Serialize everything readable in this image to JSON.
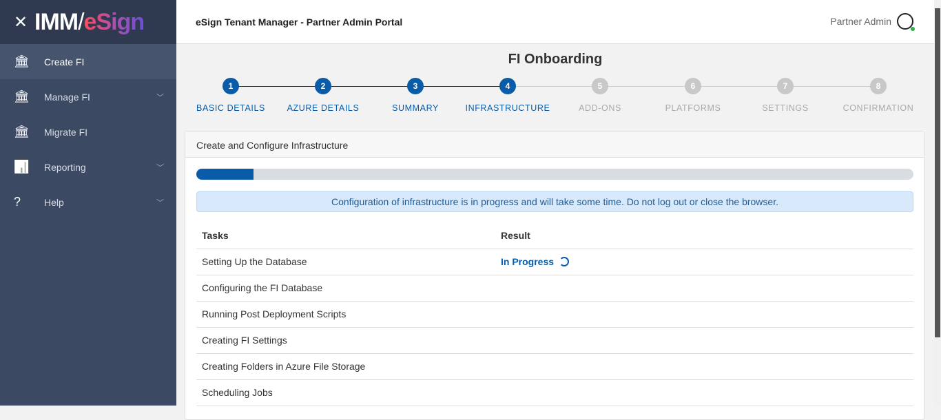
{
  "sidebar": {
    "brand": {
      "imm": "IMM",
      "slash": "/",
      "esign": "eSign"
    },
    "items": [
      {
        "label": "Create FI",
        "icon": "bank-plus-icon",
        "active": true
      },
      {
        "label": "Manage FI",
        "icon": "bank-gear-icon",
        "chevron": true
      },
      {
        "label": "Migrate FI",
        "icon": "bank-arrow-icon"
      },
      {
        "label": "Reporting",
        "icon": "bar-chart-icon",
        "chevron": true
      },
      {
        "label": "Help",
        "icon": "help-bubble-icon",
        "chevron": true
      }
    ]
  },
  "header": {
    "title": "eSign Tenant Manager - Partner Admin Portal",
    "user": "Partner Admin"
  },
  "page": {
    "title": "FI Onboarding"
  },
  "steps": [
    {
      "n": "1",
      "label": "BASIC DETAILS",
      "done": true
    },
    {
      "n": "2",
      "label": "AZURE DETAILS",
      "done": true
    },
    {
      "n": "3",
      "label": "SUMMARY",
      "done": true
    },
    {
      "n": "4",
      "label": "INFRASTRUCTURE",
      "done": true
    },
    {
      "n": "5",
      "label": "ADD-ONS"
    },
    {
      "n": "6",
      "label": "PLATFORMS"
    },
    {
      "n": "7",
      "label": "SETTINGS"
    },
    {
      "n": "8",
      "label": "CONFIRMATION"
    }
  ],
  "card": {
    "title": "Create and Configure Infrastructure",
    "progress_percent": 8,
    "alert": "Configuration of infrastructure is in progress and will take some time. Do not log out or close the browser.",
    "columns": [
      "Tasks",
      "Result"
    ],
    "rows": [
      {
        "task": "Setting Up the Database",
        "result": "In Progress"
      },
      {
        "task": "Configuring the FI Database",
        "result": ""
      },
      {
        "task": "Running Post Deployment Scripts",
        "result": ""
      },
      {
        "task": "Creating FI Settings",
        "result": ""
      },
      {
        "task": "Creating Folders in Azure File Storage",
        "result": ""
      },
      {
        "task": "Scheduling Jobs",
        "result": ""
      }
    ]
  },
  "colors": {
    "accent": "#0a5ca8",
    "sidebar": "#3b4962",
    "inactive": "#c8c8c8"
  }
}
